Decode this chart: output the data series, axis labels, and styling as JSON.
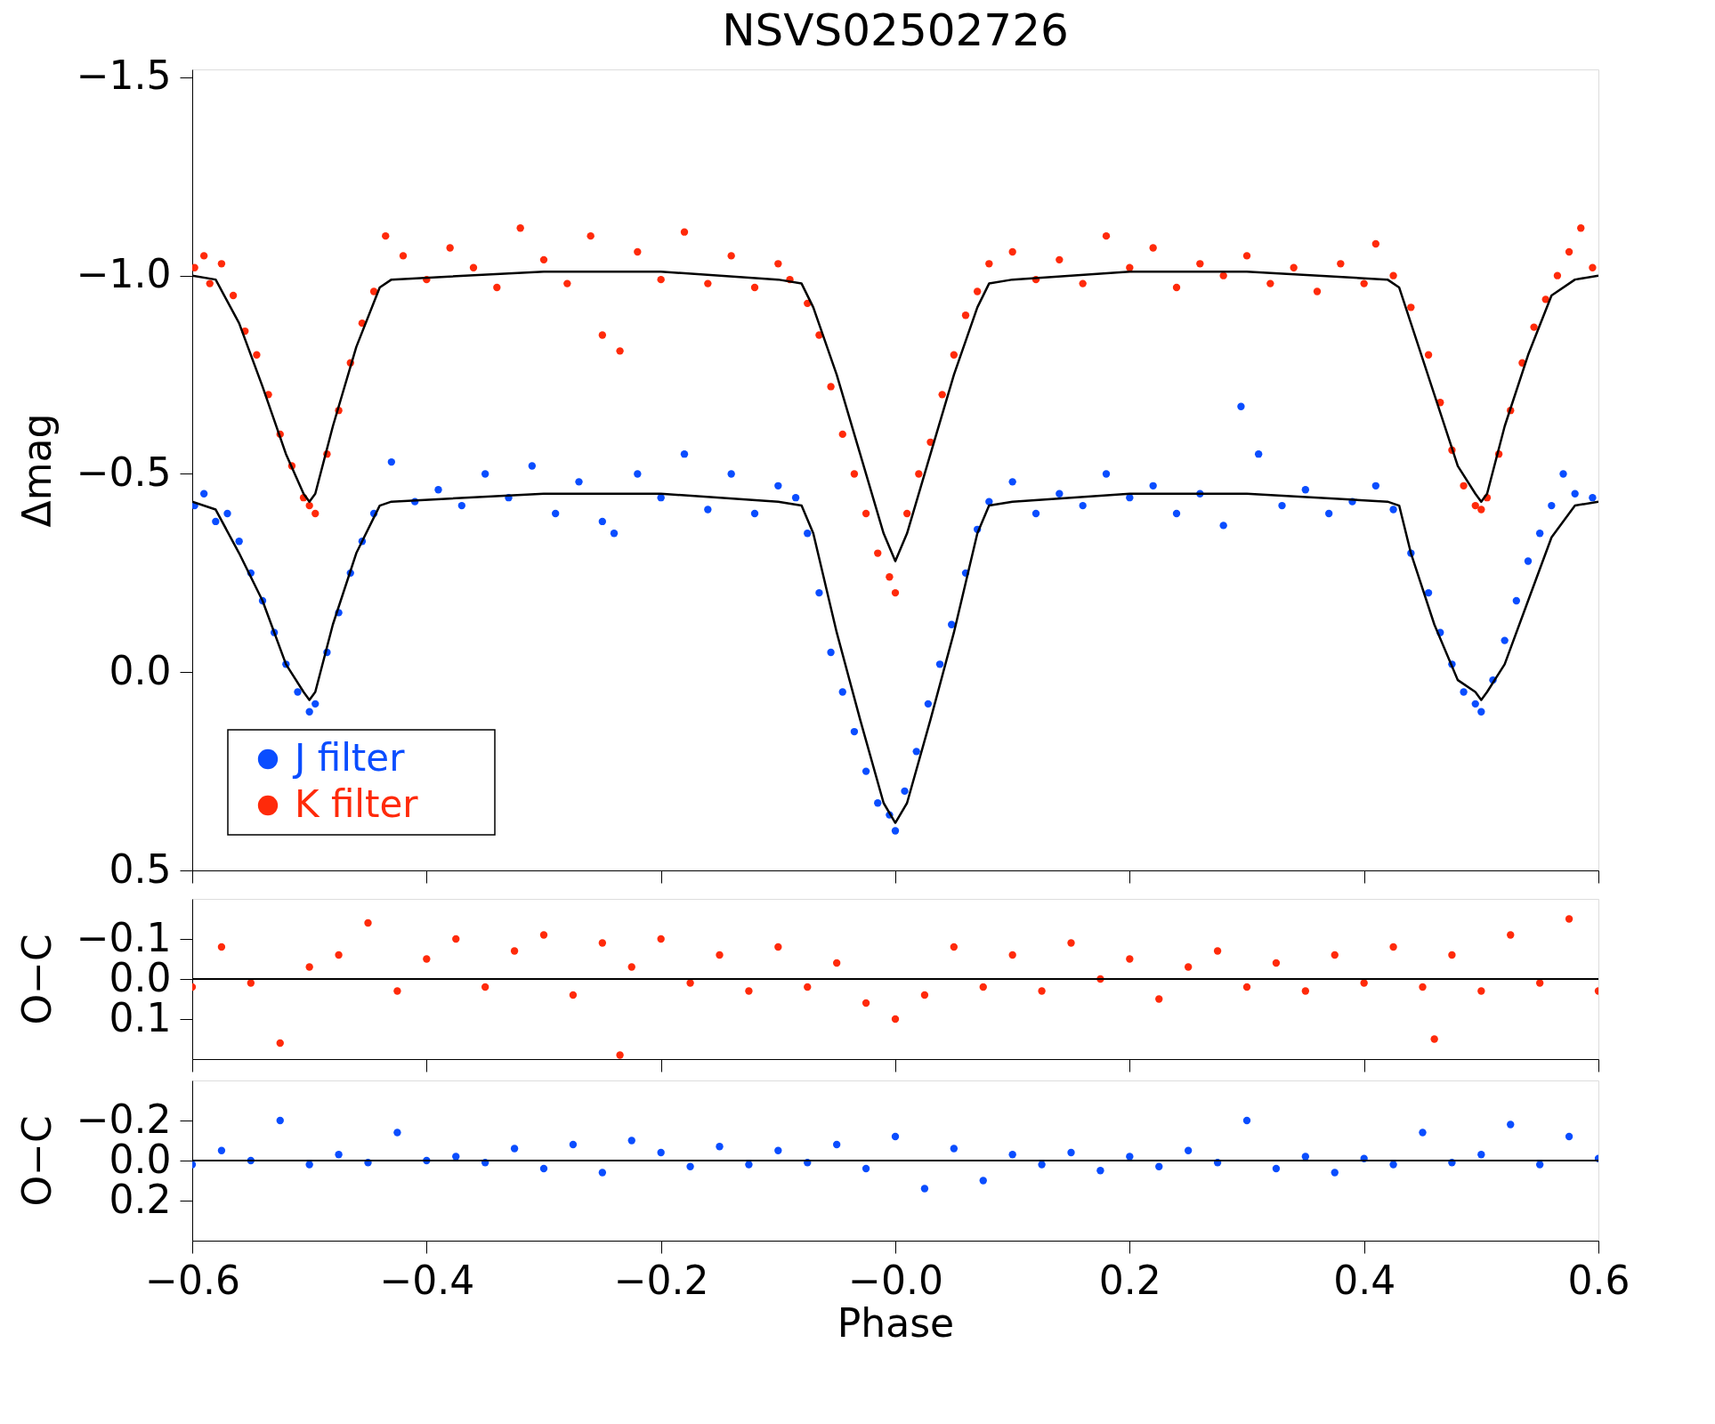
{
  "chart_data": [
    {
      "type": "scatter",
      "title": "NSVS02502726",
      "ylabel": "Δmag",
      "xlim": [
        -0.6,
        0.6
      ],
      "ylim": [
        0.5,
        -1.52
      ],
      "xticks": [
        {
          "value": -0.6,
          "label": null
        },
        {
          "value": -0.4,
          "label": null
        },
        {
          "value": -0.2,
          "label": null
        },
        {
          "value": 0.0,
          "label": null
        },
        {
          "value": 0.2,
          "label": null
        },
        {
          "value": 0.4,
          "label": null
        },
        {
          "value": 0.6,
          "label": null
        }
      ],
      "yticks": [
        {
          "value": -1.5,
          "label": "−1.5"
        },
        {
          "value": -1.0,
          "label": "−1.0"
        },
        {
          "value": -0.5,
          "label": "−0.5"
        },
        {
          "value": 0.0,
          "label": "0.0"
        },
        {
          "value": 0.5,
          "label": "0.5"
        }
      ],
      "tick_labels": "y",
      "grid": false,
      "legend": "bottom left",
      "series": [
        {
          "name": "J filter",
          "color": "#0a4dff",
          "marker": "circle",
          "x": [
            -0.598,
            -0.59,
            -0.58,
            -0.57,
            -0.56,
            -0.55,
            -0.54,
            -0.53,
            -0.52,
            -0.51,
            -0.5,
            -0.495,
            -0.485,
            -0.475,
            -0.465,
            -0.455,
            -0.445,
            -0.43,
            -0.41,
            -0.39,
            -0.37,
            -0.35,
            -0.33,
            -0.31,
            -0.29,
            -0.27,
            -0.25,
            -0.24,
            -0.22,
            -0.2,
            -0.18,
            -0.16,
            -0.14,
            -0.12,
            -0.1,
            -0.085,
            -0.075,
            -0.065,
            -0.055,
            -0.045,
            -0.035,
            -0.025,
            -0.015,
            -0.005,
            0.0,
            0.008,
            0.018,
            0.028,
            0.038,
            0.048,
            0.06,
            0.07,
            0.08,
            0.1,
            0.12,
            0.14,
            0.16,
            0.18,
            0.2,
            0.22,
            0.24,
            0.26,
            0.28,
            0.295,
            0.31,
            0.33,
            0.35,
            0.37,
            0.39,
            0.41,
            0.425,
            0.44,
            0.455,
            0.465,
            0.475,
            0.485,
            0.495,
            0.5,
            0.51,
            0.52,
            0.53,
            0.54,
            0.55,
            0.56,
            0.57,
            0.58,
            0.595
          ],
          "values": [
            -0.42,
            -0.45,
            -0.38,
            -0.4,
            -0.33,
            -0.25,
            -0.18,
            -0.1,
            -0.02,
            0.05,
            0.1,
            0.08,
            -0.05,
            -0.15,
            -0.25,
            -0.33,
            -0.4,
            -0.53,
            -0.43,
            -0.46,
            -0.42,
            -0.5,
            -0.44,
            -0.52,
            -0.4,
            -0.48,
            -0.38,
            -0.35,
            -0.5,
            -0.44,
            -0.55,
            -0.41,
            -0.5,
            -0.4,
            -0.47,
            -0.44,
            -0.35,
            -0.2,
            -0.05,
            0.05,
            0.15,
            0.25,
            0.33,
            0.36,
            0.4,
            0.3,
            0.2,
            0.08,
            -0.02,
            -0.12,
            -0.25,
            -0.36,
            -0.43,
            -0.48,
            -0.4,
            -0.45,
            -0.42,
            -0.5,
            -0.44,
            -0.47,
            -0.4,
            -0.45,
            -0.37,
            -0.67,
            -0.55,
            -0.42,
            -0.46,
            -0.4,
            -0.43,
            -0.47,
            -0.41,
            -0.3,
            -0.2,
            -0.1,
            -0.02,
            0.05,
            0.08,
            0.1,
            0.02,
            -0.08,
            -0.18,
            -0.28,
            -0.35,
            -0.42,
            -0.5,
            -0.45,
            -0.44
          ]
        },
        {
          "name": "K filter",
          "color": "#ff2a0a",
          "marker": "circle",
          "x": [
            -0.598,
            -0.59,
            -0.585,
            -0.575,
            -0.565,
            -0.555,
            -0.545,
            -0.535,
            -0.525,
            -0.515,
            -0.505,
            -0.5,
            -0.495,
            -0.485,
            -0.475,
            -0.465,
            -0.455,
            -0.445,
            -0.435,
            -0.42,
            -0.4,
            -0.38,
            -0.36,
            -0.34,
            -0.32,
            -0.3,
            -0.28,
            -0.26,
            -0.25,
            -0.235,
            -0.22,
            -0.2,
            -0.18,
            -0.16,
            -0.14,
            -0.12,
            -0.1,
            -0.09,
            -0.075,
            -0.065,
            -0.055,
            -0.045,
            -0.035,
            -0.025,
            -0.015,
            -0.005,
            0.0,
            0.01,
            0.02,
            0.03,
            0.04,
            0.05,
            0.06,
            0.07,
            0.08,
            0.1,
            0.12,
            0.14,
            0.16,
            0.18,
            0.2,
            0.22,
            0.24,
            0.26,
            0.28,
            0.3,
            0.32,
            0.34,
            0.36,
            0.38,
            0.4,
            0.41,
            0.425,
            0.44,
            0.455,
            0.465,
            0.475,
            0.485,
            0.495,
            0.5,
            0.505,
            0.515,
            0.525,
            0.535,
            0.545,
            0.555,
            0.565,
            0.575,
            0.585,
            0.595
          ],
          "values": [
            -1.02,
            -1.05,
            -0.98,
            -1.03,
            -0.95,
            -0.86,
            -0.8,
            -0.7,
            -0.6,
            -0.52,
            -0.44,
            -0.42,
            -0.4,
            -0.55,
            -0.66,
            -0.78,
            -0.88,
            -0.96,
            -1.1,
            -1.05,
            -0.99,
            -1.07,
            -1.02,
            -0.97,
            -1.12,
            -1.04,
            -0.98,
            -1.1,
            -0.85,
            -0.81,
            -1.06,
            -0.99,
            -1.11,
            -0.98,
            -1.05,
            -0.97,
            -1.03,
            -0.99,
            -0.93,
            -0.85,
            -0.72,
            -0.6,
            -0.5,
            -0.4,
            -0.3,
            -0.24,
            -0.2,
            -0.4,
            -0.5,
            -0.58,
            -0.7,
            -0.8,
            -0.9,
            -0.96,
            -1.03,
            -1.06,
            -0.99,
            -1.04,
            -0.98,
            -1.1,
            -1.02,
            -1.07,
            -0.97,
            -1.03,
            -1.0,
            -1.05,
            -0.98,
            -1.02,
            -0.96,
            -1.03,
            -0.98,
            -1.08,
            -1.0,
            -0.92,
            -0.8,
            -0.68,
            -0.56,
            -0.47,
            -0.42,
            -0.41,
            -0.44,
            -0.55,
            -0.66,
            -0.78,
            -0.87,
            -0.94,
            -1.0,
            -1.06,
            -1.12,
            -1.02
          ]
        },
        {
          "type": "line",
          "color": "#000000",
          "x": [
            -0.6,
            -0.58,
            -0.56,
            -0.54,
            -0.52,
            -0.505,
            -0.5,
            -0.495,
            -0.48,
            -0.46,
            -0.44,
            -0.43,
            -0.3,
            -0.2,
            -0.1,
            -0.08,
            -0.07,
            -0.05,
            -0.03,
            -0.01,
            0.0,
            0.01,
            0.03,
            0.05,
            0.07,
            0.08,
            0.1,
            0.2,
            0.3,
            0.42,
            0.43,
            0.44,
            0.46,
            0.48,
            0.495,
            0.5,
            0.505,
            0.52,
            0.54,
            0.56,
            0.58,
            0.6
          ],
          "values": [
            -0.43,
            -0.41,
            -0.3,
            -0.18,
            -0.02,
            0.05,
            0.07,
            0.05,
            -0.12,
            -0.3,
            -0.42,
            -0.43,
            -0.45,
            -0.45,
            -0.43,
            -0.42,
            -0.35,
            -0.1,
            0.12,
            0.33,
            0.38,
            0.33,
            0.12,
            -0.1,
            -0.35,
            -0.42,
            -0.43,
            -0.45,
            -0.45,
            -0.43,
            -0.42,
            -0.3,
            -0.12,
            0.02,
            0.05,
            0.07,
            0.05,
            -0.02,
            -0.18,
            -0.34,
            -0.42,
            -0.43
          ]
        },
        {
          "type": "line",
          "color": "#000000",
          "x": [
            -0.6,
            -0.58,
            -0.56,
            -0.54,
            -0.52,
            -0.505,
            -0.5,
            -0.495,
            -0.48,
            -0.46,
            -0.44,
            -0.43,
            -0.3,
            -0.2,
            -0.1,
            -0.08,
            -0.07,
            -0.05,
            -0.03,
            -0.01,
            0.0,
            0.01,
            0.03,
            0.05,
            0.07,
            0.08,
            0.1,
            0.2,
            0.3,
            0.42,
            0.43,
            0.44,
            0.46,
            0.48,
            0.495,
            0.5,
            0.505,
            0.52,
            0.54,
            0.56,
            0.58,
            0.6
          ],
          "values": [
            -1.0,
            -0.99,
            -0.88,
            -0.72,
            -0.55,
            -0.45,
            -0.43,
            -0.45,
            -0.62,
            -0.82,
            -0.97,
            -0.99,
            -1.01,
            -1.01,
            -0.99,
            -0.98,
            -0.92,
            -0.75,
            -0.55,
            -0.35,
            -0.28,
            -0.35,
            -0.55,
            -0.75,
            -0.92,
            -0.98,
            -0.99,
            -1.01,
            -1.01,
            -0.99,
            -0.97,
            -0.88,
            -0.7,
            -0.52,
            -0.45,
            -0.43,
            -0.45,
            -0.62,
            -0.8,
            -0.95,
            -0.99,
            -1.0
          ]
        }
      ]
    },
    {
      "type": "scatter",
      "ylabel": "O−C",
      "xlim": [
        -0.6,
        0.6
      ],
      "ylim": [
        0.2,
        -0.2
      ],
      "xticks": [
        {
          "value": -0.6,
          "label": null
        },
        {
          "value": -0.4,
          "label": null
        },
        {
          "value": -0.2,
          "label": null
        },
        {
          "value": 0.0,
          "label": null
        },
        {
          "value": 0.2,
          "label": null
        },
        {
          "value": 0.4,
          "label": null
        },
        {
          "value": 0.6,
          "label": null
        }
      ],
      "yticks": [
        {
          "value": -0.1,
          "label": "−0.1"
        },
        {
          "value": 0.0,
          "label": "0.0"
        },
        {
          "value": 0.1,
          "label": "0.1"
        }
      ],
      "tick_labels": "y",
      "grid": false,
      "marker": "circle",
      "ref_lines": [
        {
          "axis": "y",
          "value": 0.0,
          "color": "#000000"
        }
      ],
      "series": [
        {
          "color": "#ff2a0a",
          "x": [
            -0.6,
            -0.575,
            -0.55,
            -0.525,
            -0.5,
            -0.475,
            -0.45,
            -0.425,
            -0.4,
            -0.375,
            -0.35,
            -0.325,
            -0.3,
            -0.275,
            -0.25,
            -0.235,
            -0.225,
            -0.2,
            -0.175,
            -0.15,
            -0.125,
            -0.1,
            -0.075,
            -0.05,
            -0.025,
            0.0,
            0.025,
            0.05,
            0.075,
            0.1,
            0.125,
            0.15,
            0.175,
            0.2,
            0.225,
            0.25,
            0.275,
            0.3,
            0.325,
            0.35,
            0.375,
            0.4,
            0.425,
            0.45,
            0.46,
            0.475,
            0.5,
            0.525,
            0.55,
            0.575,
            0.6
          ],
          "values": [
            0.02,
            -0.08,
            0.01,
            0.16,
            -0.03,
            -0.06,
            -0.14,
            0.03,
            -0.05,
            -0.1,
            0.02,
            -0.07,
            -0.11,
            0.04,
            -0.09,
            0.19,
            -0.03,
            -0.1,
            0.01,
            -0.06,
            0.03,
            -0.08,
            0.02,
            -0.04,
            0.06,
            0.1,
            0.04,
            -0.08,
            0.02,
            -0.06,
            0.03,
            -0.09,
            0.0,
            -0.05,
            0.05,
            -0.03,
            -0.07,
            0.02,
            -0.04,
            0.03,
            -0.06,
            0.01,
            -0.08,
            0.02,
            0.15,
            -0.06,
            0.03,
            -0.11,
            0.01,
            -0.15,
            0.03
          ]
        }
      ]
    },
    {
      "type": "scatter",
      "ylabel": "O−C",
      "xlabel": "Phase",
      "xlim": [
        -0.6,
        0.6
      ],
      "ylim": [
        0.4,
        -0.4
      ],
      "xticks": [
        {
          "value": -0.6,
          "label": "−0.6"
        },
        {
          "value": -0.4,
          "label": "−0.4"
        },
        {
          "value": -0.2,
          "label": "−0.2"
        },
        {
          "value": 0.0,
          "label": "−0.0"
        },
        {
          "value": 0.2,
          "label": "0.2"
        },
        {
          "value": 0.4,
          "label": "0.4"
        },
        {
          "value": 0.6,
          "label": "0.6"
        }
      ],
      "yticks": [
        {
          "value": -0.2,
          "label": "−0.2"
        },
        {
          "value": 0.0,
          "label": "0.0"
        },
        0.2
      ],
      "grid": false,
      "marker": "circle",
      "ref_lines": [
        {
          "axis": "y",
          "value": 0.0,
          "color": "#000000"
        }
      ],
      "series": [
        {
          "color": "#0a4dff",
          "x": [
            -0.6,
            -0.575,
            -0.55,
            -0.525,
            -0.5,
            -0.475,
            -0.45,
            -0.425,
            -0.4,
            -0.375,
            -0.35,
            -0.325,
            -0.3,
            -0.275,
            -0.25,
            -0.225,
            -0.2,
            -0.175,
            -0.15,
            -0.125,
            -0.1,
            -0.075,
            -0.05,
            -0.025,
            0.0,
            0.025,
            0.05,
            0.075,
            0.1,
            0.125,
            0.15,
            0.175,
            0.2,
            0.225,
            0.25,
            0.275,
            0.3,
            0.325,
            0.35,
            0.375,
            0.4,
            0.425,
            0.45,
            0.475,
            0.5,
            0.525,
            0.55,
            0.575,
            0.6
          ],
          "values": [
            0.02,
            -0.05,
            0.0,
            -0.2,
            0.02,
            -0.03,
            0.01,
            -0.14,
            0.0,
            -0.02,
            0.01,
            -0.06,
            0.04,
            -0.08,
            0.06,
            -0.1,
            -0.04,
            0.03,
            -0.07,
            0.02,
            -0.05,
            0.01,
            -0.08,
            0.04,
            -0.12,
            0.14,
            -0.06,
            0.1,
            -0.03,
            0.02,
            -0.04,
            0.05,
            -0.02,
            0.03,
            -0.05,
            0.01,
            -0.2,
            0.04,
            -0.02,
            0.06,
            -0.01,
            0.02,
            -0.14,
            0.01,
            -0.03,
            -0.18,
            0.02,
            -0.12,
            -0.01
          ]
        }
      ]
    }
  ]
}
